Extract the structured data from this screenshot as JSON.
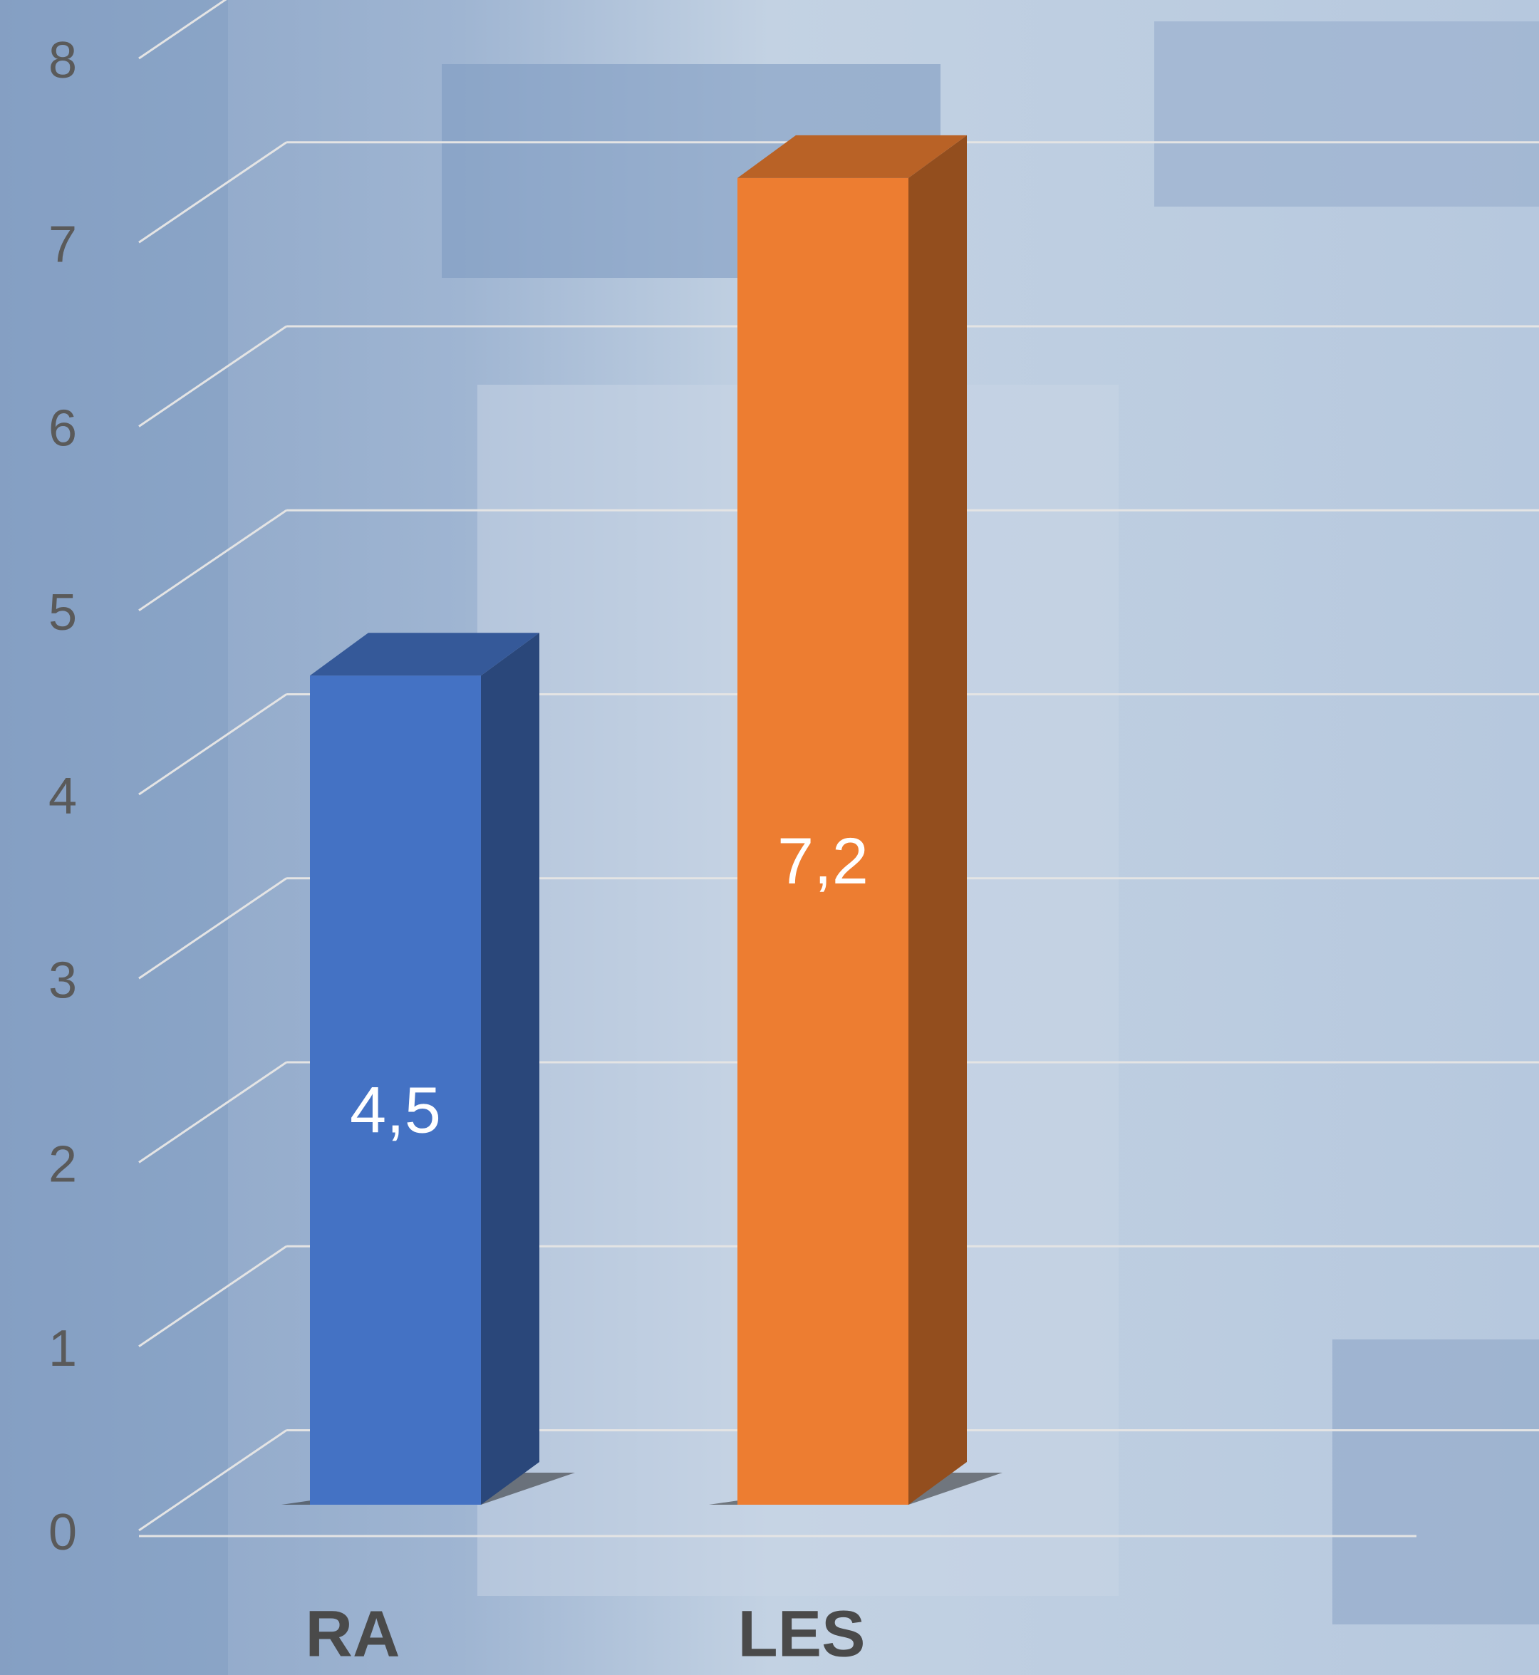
{
  "chart_data": {
    "type": "bar3d",
    "categories": [
      "RA",
      "LES"
    ],
    "values": [
      4.5,
      7.2
    ],
    "value_labels": [
      "4,5",
      "7,2"
    ],
    "colors": [
      "#4472c4",
      "#ed7d31"
    ],
    "ylim": [
      0,
      8
    ],
    "yticks": [
      0,
      1,
      2,
      3,
      4,
      5,
      6,
      7,
      8
    ],
    "grid": true
  }
}
